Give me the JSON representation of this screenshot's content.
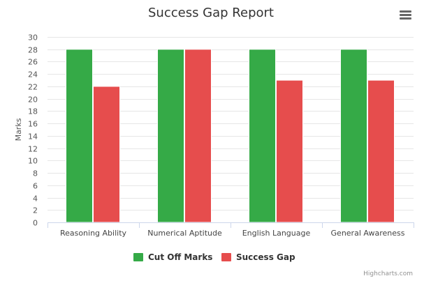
{
  "chart_data": {
    "type": "bar",
    "title": "Success Gap Report",
    "ylabel": "Marks",
    "xlabel": "",
    "ylim": [
      0,
      30
    ],
    "ytick_step": 2,
    "categories": [
      "Reasoning Ability",
      "Numerical Aptitude",
      "English Language",
      "General Awareness"
    ],
    "series": [
      {
        "name": "Cut Off Marks",
        "color": "#35aa47",
        "values": [
          28,
          28,
          28,
          28
        ]
      },
      {
        "name": "Success Gap",
        "color": "#e64d4d",
        "values": [
          22,
          28,
          23,
          23
        ]
      }
    ],
    "grid": true,
    "legend_position": "bottom-center"
  },
  "menu_icon": "hamburger-menu-icon",
  "credits": "Highcharts.com"
}
